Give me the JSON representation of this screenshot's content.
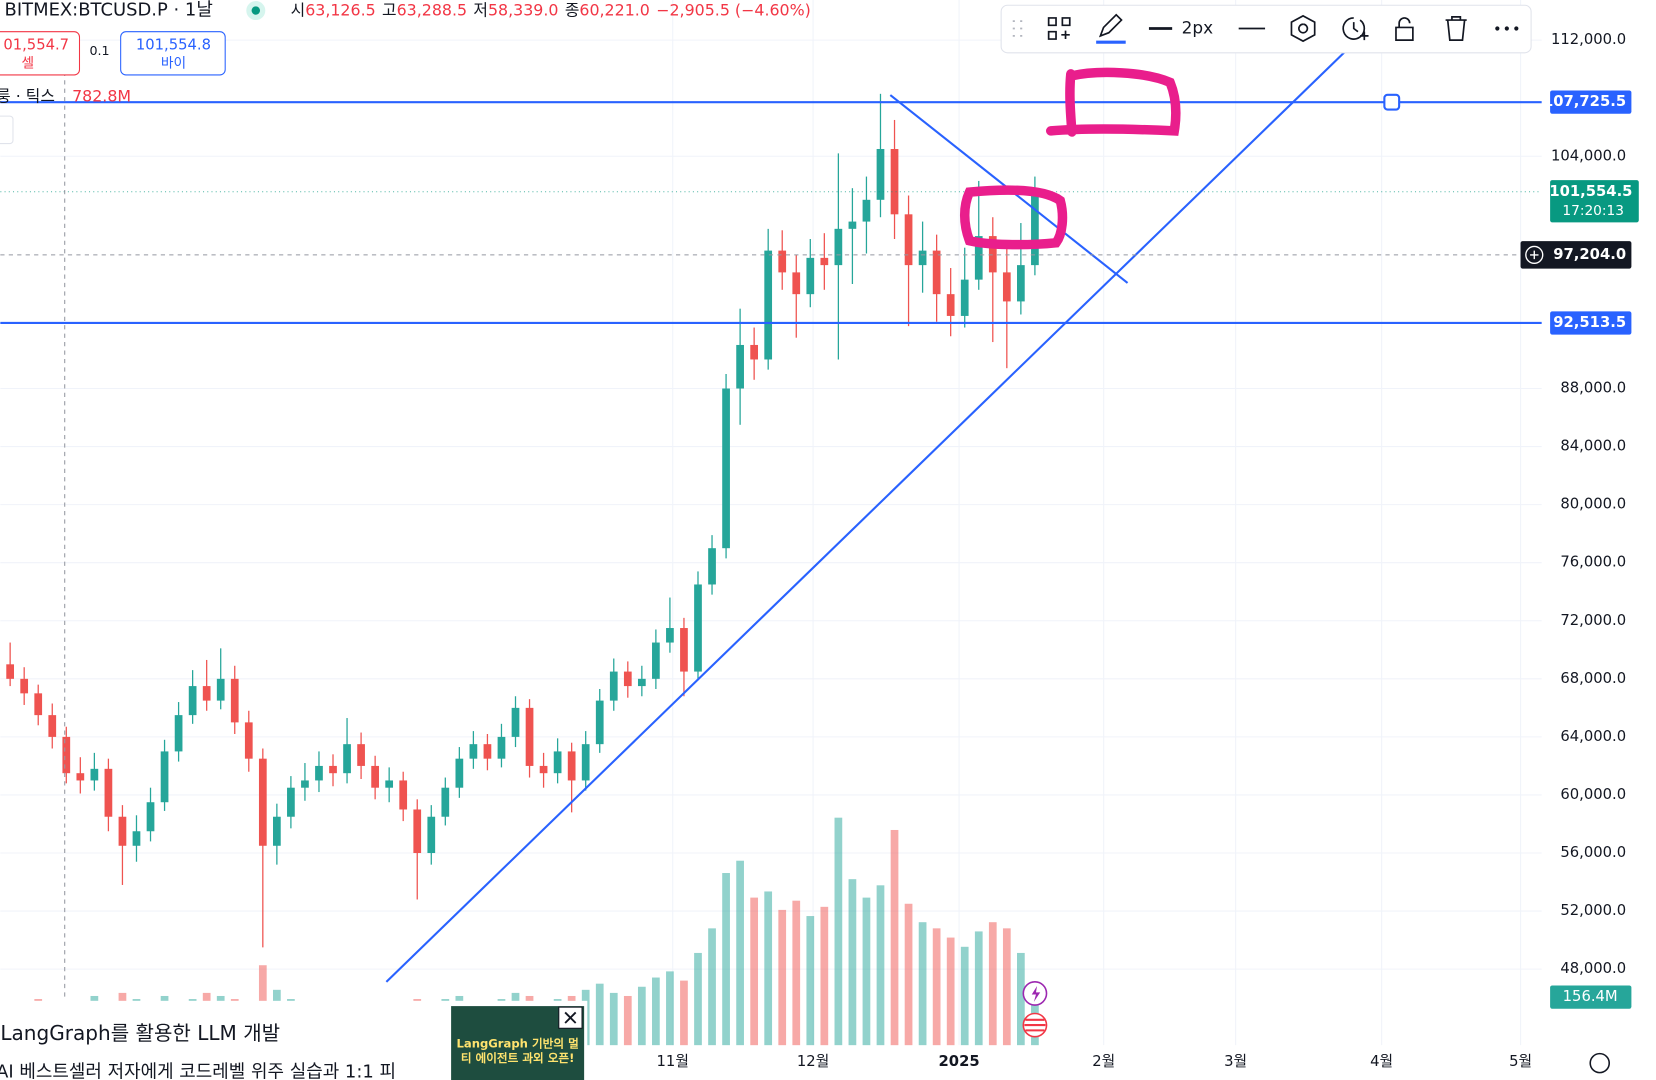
{
  "header": {
    "symbol": "BITMEX:BTCUSD.P · 1날",
    "ohlc": [
      {
        "k": "시",
        "v": "63,126.5"
      },
      {
        "k": "고",
        "v": "63,288.5"
      },
      {
        "k": "저",
        "v": "58,339.0"
      },
      {
        "k": "종",
        "v": "60,221.0"
      }
    ],
    "change": "−2,905.5 (−4.60%)"
  },
  "order": {
    "sell_price": "01,554.7",
    "sell_label": "셀",
    "qty": "0.1",
    "buy_price": "101,554.8",
    "buy_label": "바이"
  },
  "volume_legend": {
    "label": "룽 · 틱스",
    "value": "782.8M"
  },
  "toolbar": {
    "width_label": "2px"
  },
  "ad": {
    "title": "LangGraph를 활용한 LLM 개발",
    "body": "AI 베스트셀러 저자에게 코드레벨 위주 실습과 1:1 피",
    "image_text": "LangGraph 기반의 멀티 에이전트 과외 오픈!"
  },
  "chart_data": {
    "type": "candlestick",
    "xlim": [
      -0.7,
      109.1
    ],
    "ylim": [
      42764,
      114764
    ],
    "y2lim": [
      0,
      3400
    ],
    "xticks": [
      {
        "value": 47.2,
        "label": "11월"
      },
      {
        "value": 57.2,
        "label": "12월"
      },
      {
        "value": 67.6,
        "label": "2025"
      },
      {
        "value": 77.9,
        "label": "2월"
      },
      {
        "value": 87.3,
        "label": "3월"
      },
      {
        "value": 97.7,
        "label": "4월"
      },
      {
        "value": 107.6,
        "label": "5월"
      }
    ],
    "yticks": [
      {
        "value": 112000,
        "label": "112,000.0"
      },
      {
        "value": 104000,
        "label": "104,000.0"
      },
      {
        "value": 88000,
        "label": "88,000.0"
      },
      {
        "value": 84000,
        "label": "84,000.0"
      },
      {
        "value": 80000,
        "label": "80,000.0"
      },
      {
        "value": 76000,
        "label": "76,000.0"
      },
      {
        "value": 72000,
        "label": "72,000.0"
      },
      {
        "value": 68000,
        "label": "68,000.0"
      },
      {
        "value": 64000,
        "label": "64,000.0"
      },
      {
        "value": 60000,
        "label": "60,000.0"
      },
      {
        "value": 56000,
        "label": "56,000.0"
      },
      {
        "value": 52000,
        "label": "52,000.0"
      },
      {
        "value": 48000,
        "label": "48,000.0"
      }
    ],
    "grid": true,
    "up_color": "#26a69a",
    "down_color": "#ef5350",
    "ohlc": [
      [
        69000,
        70500,
        67500,
        68000
      ],
      [
        68000,
        68800,
        66200,
        67000
      ],
      [
        67000,
        67600,
        64800,
        65500
      ],
      [
        65500,
        66300,
        63200,
        64000
      ],
      [
        64000,
        64700,
        60800,
        61500
      ],
      [
        61500,
        62600,
        60100,
        61000
      ],
      [
        61000,
        62900,
        60300,
        61800
      ],
      [
        61800,
        62500,
        57500,
        58500
      ],
      [
        58500,
        59300,
        53800,
        56500
      ],
      [
        56500,
        58600,
        55400,
        57500
      ],
      [
        57500,
        60500,
        56800,
        59500
      ],
      [
        59500,
        63800,
        58900,
        63000
      ],
      [
        63000,
        66400,
        62300,
        65500
      ],
      [
        65500,
        68600,
        64900,
        67500
      ],
      [
        67500,
        69300,
        65800,
        66500
      ],
      [
        66500,
        70100,
        65900,
        68000
      ],
      [
        68000,
        68900,
        64200,
        65000
      ],
      [
        65000,
        65800,
        61600,
        62500
      ],
      [
        62500,
        63200,
        49500,
        56500
      ],
      [
        56500,
        59400,
        55200,
        58500
      ],
      [
        58500,
        61300,
        57700,
        60500
      ],
      [
        60500,
        62200,
        59600,
        61000
      ],
      [
        61000,
        63000,
        60200,
        62000
      ],
      [
        62000,
        62800,
        60600,
        61500
      ],
      [
        61500,
        65300,
        60800,
        63500
      ],
      [
        63500,
        64300,
        61100,
        62000
      ],
      [
        62000,
        62700,
        59700,
        60500
      ],
      [
        60500,
        61900,
        59500,
        61000
      ],
      [
        61000,
        61600,
        58200,
        59000
      ],
      [
        59000,
        59700,
        52800,
        56000
      ],
      [
        56000,
        59300,
        55200,
        58500
      ],
      [
        58500,
        61200,
        57900,
        60500
      ],
      [
        60500,
        63300,
        59800,
        62500
      ],
      [
        62500,
        64400,
        61800,
        63500
      ],
      [
        63500,
        64200,
        61700,
        62500
      ],
      [
        62500,
        64900,
        61900,
        64000
      ],
      [
        64000,
        66800,
        63300,
        66000
      ],
      [
        66000,
        66600,
        61200,
        62000
      ],
      [
        62000,
        62900,
        60500,
        61500
      ],
      [
        61500,
        63900,
        60800,
        63000
      ],
      [
        63000,
        63600,
        58800,
        61000
      ],
      [
        61000,
        64400,
        60300,
        63500
      ],
      [
        63500,
        67300,
        62900,
        66500
      ],
      [
        66500,
        69400,
        65800,
        68500
      ],
      [
        68500,
        69200,
        66700,
        67500
      ],
      [
        67500,
        68900,
        66800,
        68000
      ],
      [
        68000,
        71400,
        67300,
        70500
      ],
      [
        70500,
        73600,
        69800,
        71500
      ],
      [
        71500,
        72200,
        66800,
        68500
      ],
      [
        68500,
        75400,
        67900,
        74500
      ],
      [
        74500,
        77900,
        73800,
        77000
      ],
      [
        77000,
        89000,
        76300,
        88000
      ],
      [
        88000,
        93500,
        85500,
        91000
      ],
      [
        91000,
        92200,
        88600,
        90000
      ],
      [
        90000,
        99000,
        89300,
        97500
      ],
      [
        97500,
        98900,
        94800,
        96000
      ],
      [
        96000,
        97200,
        91500,
        94500
      ],
      [
        94500,
        98300,
        93600,
        97000
      ],
      [
        97000,
        98700,
        94800,
        96500
      ],
      [
        96500,
        104200,
        90000,
        99000
      ],
      [
        99000,
        101800,
        95200,
        99500
      ],
      [
        99500,
        102600,
        97300,
        101000
      ],
      [
        101000,
        108300,
        99800,
        104500
      ],
      [
        104500,
        106500,
        98300,
        100000
      ],
      [
        100000,
        101300,
        92300,
        96500
      ],
      [
        96500,
        99500,
        94600,
        97500
      ],
      [
        97500,
        98600,
        92600,
        94500
      ],
      [
        94500,
        96300,
        91600,
        93000
      ],
      [
        93000,
        97700,
        92200,
        95500
      ],
      [
        95500,
        102300,
        94800,
        98500
      ],
      [
        98500,
        99800,
        91200,
        96000
      ],
      [
        96000,
        97900,
        89400,
        94000
      ],
      [
        94000,
        99400,
        93100,
        96500
      ],
      [
        96500,
        102600,
        95800,
        101554.5
      ]
    ],
    "volumes": [
      120,
      110,
      150,
      130,
      140,
      120,
      160,
      130,
      170,
      150,
      140,
      160,
      130,
      150,
      170,
      160,
      150,
      140,
      260,
      180,
      150,
      140,
      130,
      120,
      140,
      130,
      120,
      110,
      130,
      150,
      140,
      150,
      160,
      130,
      140,
      150,
      170,
      160,
      140,
      150,
      160,
      180,
      200,
      170,
      160,
      190,
      220,
      240,
      210,
      300,
      380,
      560,
      600,
      480,
      500,
      440,
      470,
      420,
      450,
      740,
      540,
      480,
      520,
      700,
      460,
      400,
      380,
      350,
      320,
      370,
      400,
      380,
      300,
      156.4
    ],
    "volume_last_label": "156.4M",
    "last_price": 101554.5,
    "last_price_label": "101,554.5",
    "countdown": "17:20:13",
    "crosshair_price": 97204.0,
    "crosshair_label": "97,204.0",
    "hlines": [
      {
        "value": 107725.5,
        "label": "107,725.5",
        "color": "#2962ff"
      },
      {
        "value": 92513.5,
        "label": "92,513.5",
        "color": "#2962ff"
      }
    ],
    "trendlines": [
      {
        "x": [
          26.8,
          95.4
        ],
        "y": [
          47127,
          111491
        ],
        "color": "#2962ff"
      },
      {
        "x": [
          62.7,
          79.6
        ],
        "y": [
          108218,
          95273
        ],
        "color": "#2962ff"
      }
    ]
  }
}
